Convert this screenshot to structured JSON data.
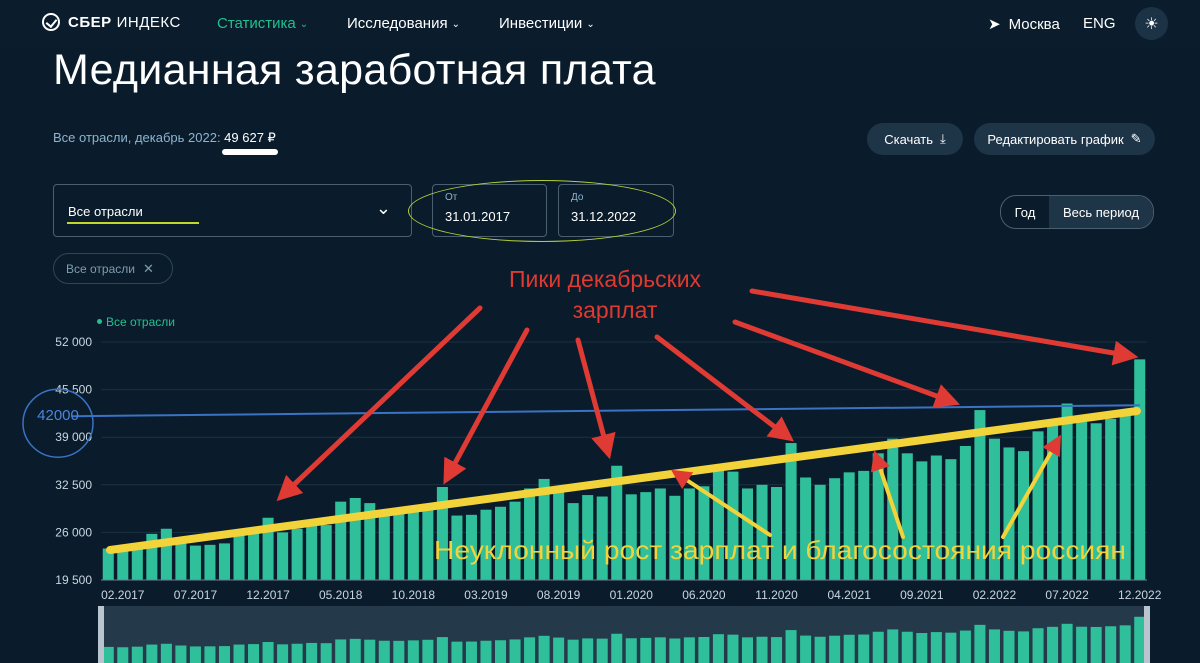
{
  "nav": {
    "logo_bold": "СБЕР",
    "logo_rest": "ИНДЕКС",
    "menu": [
      "Статистика",
      "Исследования",
      "Инвестиции"
    ],
    "location": "Москва",
    "lang": "ENG"
  },
  "page": {
    "title": "Медианная заработная плата",
    "subtitle_prefix": "Все отрасли, декабрь 2022: ",
    "subtitle_value": "49 627 ₽",
    "download_label": "Скачать",
    "edit_label": "Редактировать график"
  },
  "filters": {
    "industry": "Все отрасли",
    "from_label": "От",
    "from_value": "31.01.2017",
    "to_label": "До",
    "to_value": "31.12.2022",
    "period_year": "Год",
    "period_all": "Весь период",
    "chip": "Все отрасли"
  },
  "annotations": {
    "peaks_line1": "Пики декабрьских",
    "peaks_line2": "зарплат",
    "growth": "Неуклонный рост зарплат и благосостояния россиян",
    "ref_label": "42000"
  },
  "colors": {
    "bar": "#2fbf9a",
    "accent": "#21c08e",
    "arrow": "#e03a34",
    "trend": "#f2d33a",
    "refline": "#3a72c4"
  },
  "chart_data": {
    "type": "bar",
    "legend": "Все отрасли",
    "ylim": [
      19500,
      52000
    ],
    "yticks": [
      "52 000",
      "45 500",
      "39 000",
      "32 500",
      "26 000",
      "19 500"
    ],
    "xticks": [
      "02.2017",
      "07.2017",
      "12.2017",
      "05.2018",
      "10.2018",
      "03.2019",
      "08.2019",
      "01.2020",
      "06.2020",
      "11.2020",
      "04.2021",
      "09.2021",
      "02.2022",
      "07.2022",
      "12.2022"
    ],
    "categories": [
      "01.2017",
      "02.2017",
      "03.2017",
      "04.2017",
      "05.2017",
      "06.2017",
      "07.2017",
      "08.2017",
      "09.2017",
      "10.2017",
      "11.2017",
      "12.2017",
      "01.2018",
      "02.2018",
      "03.2018",
      "04.2018",
      "05.2018",
      "06.2018",
      "07.2018",
      "08.2018",
      "09.2018",
      "10.2018",
      "11.2018",
      "12.2018",
      "01.2019",
      "02.2019",
      "03.2019",
      "04.2019",
      "05.2019",
      "06.2019",
      "07.2019",
      "08.2019",
      "09.2019",
      "10.2019",
      "11.2019",
      "12.2019",
      "01.2020",
      "02.2020",
      "03.2020",
      "04.2020",
      "05.2020",
      "06.2020",
      "07.2020",
      "08.2020",
      "09.2020",
      "10.2020",
      "11.2020",
      "12.2020",
      "01.2021",
      "02.2021",
      "03.2021",
      "04.2021",
      "05.2021",
      "06.2021",
      "07.2021",
      "08.2021",
      "09.2021",
      "10.2021",
      "11.2021",
      "12.2021",
      "01.2022",
      "02.2022",
      "03.2022",
      "04.2022",
      "05.2022",
      "06.2022",
      "07.2022",
      "08.2022",
      "09.2022",
      "10.2022",
      "11.2022",
      "12.2022"
    ],
    "values": [
      23800,
      23500,
      24000,
      25800,
      26500,
      25000,
      24200,
      24300,
      24500,
      25800,
      26200,
      28000,
      26000,
      26500,
      27200,
      27000,
      30200,
      30700,
      30000,
      29100,
      29000,
      29400,
      29900,
      32200,
      28300,
      28400,
      29100,
      29500,
      30200,
      32000,
      33300,
      31800,
      30000,
      31100,
      30900,
      35100,
      31200,
      31500,
      32000,
      31000,
      32000,
      32300,
      34700,
      34300,
      32000,
      32500,
      32200,
      38200,
      33500,
      32500,
      33400,
      34200,
      34400,
      36800,
      38800,
      36800,
      35700,
      36500,
      36000,
      37800,
      42700,
      38800,
      37600,
      37100,
      39800,
      41000,
      43600,
      41100,
      40900,
      41500,
      42300,
      49627
    ],
    "ref_line": 42000
  }
}
